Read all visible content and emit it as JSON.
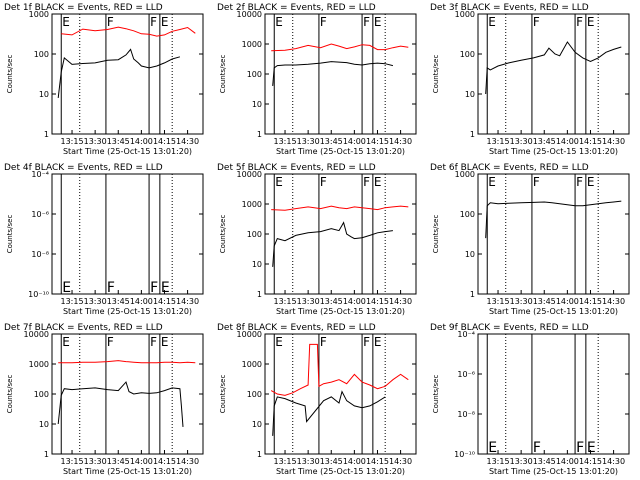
{
  "figure": {
    "x_ticks": [
      "13:15",
      "13:30",
      "13:45",
      "14:00",
      "14:15",
      "14:30"
    ],
    "xlabel": "Start Time (25-Oct-15 13:01:20)",
    "ylabel": "Counts/sec"
  },
  "chart_data": [
    {
      "type": "line",
      "title": "Det 1f BLACK = Events, RED = LLD",
      "ylim": [
        1,
        1000
      ],
      "log_y": true,
      "y_ticks": [
        "1",
        "10",
        "100",
        "1000"
      ],
      "markers": [
        {
          "label": "E",
          "x": "13:08"
        },
        {
          "label": "F",
          "x": "13:37"
        },
        {
          "label": "F",
          "x": "14:05"
        },
        {
          "label": "E",
          "x": "14:12"
        }
      ],
      "dotted_lines": [
        "13:20",
        "14:20"
      ],
      "series": [
        {
          "color": "#ff0000",
          "x": [
            "13:08",
            "13:15",
            "13:22",
            "13:30",
            "13:38",
            "13:45",
            "13:50",
            "13:55",
            "14:00",
            "14:05",
            "14:10",
            "14:15",
            "14:20",
            "14:25",
            "14:30",
            "14:35"
          ],
          "values": [
            320,
            300,
            420,
            380,
            410,
            470,
            430,
            380,
            320,
            310,
            280,
            300,
            370,
            410,
            460,
            330
          ]
        },
        {
          "color": "#000000",
          "x": [
            "13:06",
            "13:08",
            "13:10",
            "13:15",
            "13:22",
            "13:30",
            "13:38",
            "13:45",
            "13:50",
            "13:53",
            "13:55",
            "13:58",
            "14:00",
            "14:05",
            "14:10",
            "14:15",
            "14:20",
            "14:25"
          ],
          "values": [
            8,
            35,
            80,
            55,
            58,
            60,
            70,
            72,
            95,
            130,
            75,
            60,
            50,
            45,
            50,
            60,
            75,
            85
          ]
        }
      ]
    },
    {
      "type": "line",
      "title": "Det 2f BLACK = Events, RED = LLD",
      "ylim": [
        1,
        10000
      ],
      "log_y": true,
      "y_ticks": [
        "1",
        "10",
        "100",
        "1000",
        "10000"
      ],
      "markers": [
        {
          "label": "E",
          "x": "13:08"
        },
        {
          "label": "F",
          "x": "13:37"
        },
        {
          "label": "F",
          "x": "14:05"
        },
        {
          "label": "E",
          "x": "14:12"
        }
      ],
      "dotted_lines": [
        "13:20",
        "14:20"
      ],
      "series": [
        {
          "color": "#ff0000",
          "x": [
            "13:06",
            "13:15",
            "13:22",
            "13:30",
            "13:38",
            "13:45",
            "13:50",
            "13:55",
            "14:00",
            "14:05",
            "14:10",
            "14:15",
            "14:20",
            "14:25",
            "14:30",
            "14:35"
          ],
          "values": [
            600,
            620,
            700,
            900,
            750,
            1000,
            850,
            700,
            800,
            950,
            900,
            650,
            650,
            750,
            850,
            780
          ]
        },
        {
          "color": "#000000",
          "x": [
            "13:07",
            "13:08",
            "13:10",
            "13:15",
            "13:22",
            "13:30",
            "13:38",
            "13:45",
            "13:50",
            "13:55",
            "14:00",
            "14:05",
            "14:10",
            "14:15",
            "14:20",
            "14:25"
          ],
          "values": [
            40,
            160,
            190,
            200,
            200,
            210,
            230,
            260,
            250,
            240,
            210,
            200,
            220,
            230,
            220,
            190
          ]
        }
      ]
    },
    {
      "type": "line",
      "title": "Det 3f BLACK = Events, RED = LLD",
      "ylim": [
        1,
        1000
      ],
      "log_y": true,
      "y_ticks": [
        "1",
        "10",
        "100",
        "1000"
      ],
      "markers": [
        {
          "label": "E",
          "x": "13:08"
        },
        {
          "label": "F",
          "x": "13:37"
        },
        {
          "label": "F",
          "x": "14:05"
        },
        {
          "label": "E",
          "x": "14:12"
        }
      ],
      "dotted_lines": [
        "13:20",
        "14:20"
      ],
      "series": [
        {
          "color": "#000000",
          "x": [
            "13:07",
            "13:08",
            "13:10",
            "13:15",
            "13:22",
            "13:30",
            "13:38",
            "13:45",
            "13:48",
            "13:52",
            "13:55",
            "14:00",
            "14:05",
            "14:10",
            "14:15",
            "14:20",
            "14:25",
            "14:30",
            "14:35"
          ],
          "values": [
            10,
            45,
            40,
            50,
            60,
            70,
            80,
            95,
            140,
            100,
            90,
            200,
            110,
            80,
            65,
            80,
            110,
            130,
            150
          ]
        }
      ]
    },
    {
      "type": "line",
      "title": "Det 4f BLACK = Events, RED = LLD",
      "ylim": [
        1e-10,
        0.0001
      ],
      "log_y": true,
      "y_ticks": [
        "10⁻¹⁰",
        "10⁻⁸",
        "10⁻⁶",
        "10⁻⁴"
      ],
      "markers": [
        {
          "label": "E",
          "x": "13:08"
        },
        {
          "label": "F",
          "x": "13:37"
        },
        {
          "label": "F",
          "x": "14:05"
        },
        {
          "label": "E",
          "x": "14:12"
        }
      ],
      "dotted_lines": [
        "13:20",
        "14:20"
      ],
      "series": []
    },
    {
      "type": "line",
      "title": "Det 5f BLACK = Events, RED = LLD",
      "ylim": [
        1,
        10000
      ],
      "log_y": true,
      "y_ticks": [
        "1",
        "10",
        "100",
        "1000",
        "10000"
      ],
      "markers": [
        {
          "label": "E",
          "x": "13:08"
        },
        {
          "label": "F",
          "x": "13:37"
        },
        {
          "label": "F",
          "x": "14:05"
        },
        {
          "label": "E",
          "x": "14:12"
        }
      ],
      "dotted_lines": [
        "13:20",
        "14:20"
      ],
      "series": [
        {
          "color": "#ff0000",
          "x": [
            "13:06",
            "13:15",
            "13:22",
            "13:30",
            "13:38",
            "13:45",
            "13:50",
            "13:55",
            "14:00",
            "14:05",
            "14:10",
            "14:15",
            "14:20",
            "14:25",
            "14:30",
            "14:35"
          ],
          "values": [
            650,
            620,
            700,
            800,
            700,
            850,
            750,
            700,
            800,
            750,
            700,
            650,
            750,
            800,
            850,
            800
          ]
        },
        {
          "color": "#000000",
          "x": [
            "13:07",
            "13:08",
            "13:10",
            "13:15",
            "13:22",
            "13:30",
            "13:38",
            "13:45",
            "13:50",
            "13:53",
            "13:55",
            "13:58",
            "14:00",
            "14:05",
            "14:10",
            "14:15",
            "14:20",
            "14:25"
          ],
          "values": [
            8,
            40,
            70,
            60,
            90,
            110,
            120,
            150,
            130,
            240,
            100,
            80,
            70,
            75,
            90,
            110,
            120,
            130
          ]
        }
      ]
    },
    {
      "type": "line",
      "title": "Det 6f BLACK = Events, RED = LLD",
      "ylim": [
        1,
        1000
      ],
      "log_y": true,
      "y_ticks": [
        "1",
        "10",
        "100",
        "1000"
      ],
      "markers": [
        {
          "label": "E",
          "x": "13:08"
        },
        {
          "label": "F",
          "x": "13:37"
        },
        {
          "label": "F",
          "x": "14:05"
        },
        {
          "label": "E",
          "x": "14:12"
        }
      ],
      "dotted_lines": [
        "13:20",
        "14:20"
      ],
      "series": [
        {
          "color": "#000000",
          "x": [
            "13:07",
            "13:08",
            "13:10",
            "13:15",
            "13:22",
            "13:30",
            "13:38",
            "13:45",
            "13:50",
            "13:55",
            "14:00",
            "14:05",
            "14:10",
            "14:15",
            "14:20",
            "14:25",
            "14:30",
            "14:35"
          ],
          "values": [
            25,
            160,
            190,
            180,
            185,
            190,
            195,
            200,
            190,
            180,
            170,
            160,
            160,
            170,
            180,
            190,
            200,
            210
          ]
        }
      ]
    },
    {
      "type": "line",
      "title": "Det 7f BLACK = Events, RED = LLD",
      "ylim": [
        1,
        10000
      ],
      "log_y": true,
      "y_ticks": [
        "1",
        "10",
        "100",
        "1000",
        "10000"
      ],
      "markers": [
        {
          "label": "E",
          "x": "13:08"
        },
        {
          "label": "F",
          "x": "13:37"
        },
        {
          "label": "F",
          "x": "14:05"
        },
        {
          "label": "E",
          "x": "14:12"
        }
      ],
      "dotted_lines": [
        "13:20",
        "14:20"
      ],
      "series": [
        {
          "color": "#ff0000",
          "x": [
            "13:06",
            "13:15",
            "13:22",
            "13:30",
            "13:38",
            "13:45",
            "13:50",
            "13:55",
            "14:00",
            "14:05",
            "14:10",
            "14:15",
            "14:20",
            "14:25",
            "14:30",
            "14:35"
          ],
          "values": [
            1100,
            1100,
            1150,
            1150,
            1200,
            1300,
            1200,
            1150,
            1100,
            1100,
            1100,
            1150,
            1150,
            1100,
            1150,
            1100
          ]
        },
        {
          "color": "#000000",
          "x": [
            "13:06",
            "13:08",
            "13:10",
            "13:15",
            "13:22",
            "13:30",
            "13:38",
            "13:45",
            "13:50",
            "13:52",
            "13:55",
            "14:00",
            "14:05",
            "14:10",
            "14:15",
            "14:20",
            "14:25",
            "14:26",
            "14:27"
          ],
          "values": [
            10,
            90,
            150,
            140,
            150,
            160,
            140,
            130,
            250,
            120,
            100,
            110,
            105,
            110,
            130,
            160,
            150,
            40,
            8
          ]
        }
      ]
    },
    {
      "type": "line",
      "title": "Det 8f BLACK = Events, RED = LLD",
      "ylim": [
        1,
        10000
      ],
      "log_y": true,
      "y_ticks": [
        "1",
        "10",
        "100",
        "1000",
        "10000"
      ],
      "markers": [
        {
          "label": "E",
          "x": "13:08"
        },
        {
          "label": "F",
          "x": "13:37"
        },
        {
          "label": "F",
          "x": "14:05"
        },
        {
          "label": "E",
          "x": "14:12"
        }
      ],
      "dotted_lines": [
        "13:20",
        "14:20"
      ],
      "series": [
        {
          "color": "#ff0000",
          "x": [
            "13:06",
            "13:10",
            "13:15",
            "13:20",
            "13:25",
            "13:30",
            "13:31",
            "13:36",
            "13:37",
            "13:40",
            "13:45",
            "13:50",
            "13:55",
            "14:00",
            "14:05",
            "14:10",
            "14:15",
            "14:20",
            "14:25",
            "14:30",
            "14:35"
          ],
          "values": [
            130,
            100,
            90,
            110,
            150,
            200,
            4500,
            4500,
            180,
            220,
            250,
            300,
            220,
            450,
            250,
            200,
            150,
            180,
            300,
            450,
            300
          ]
        },
        {
          "color": "#000000",
          "x": [
            "13:07",
            "13:08",
            "13:10",
            "13:15",
            "13:22",
            "13:28",
            "13:29",
            "13:40",
            "13:45",
            "13:50",
            "13:52",
            "13:55",
            "14:00",
            "14:05",
            "14:10",
            "14:15",
            "14:20"
          ],
          "values": [
            4,
            40,
            80,
            70,
            50,
            40,
            12,
            60,
            80,
            50,
            120,
            60,
            40,
            35,
            40,
            55,
            80
          ]
        }
      ]
    },
    {
      "type": "line",
      "title": "Det 9f BLACK = Events, RED = LLD",
      "ylim": [
        1e-10,
        0.0001
      ],
      "log_y": true,
      "y_ticks": [
        "10⁻¹⁰",
        "10⁻⁸",
        "10⁻⁶",
        "10⁻⁴"
      ],
      "markers": [
        {
          "label": "E",
          "x": "13:08"
        },
        {
          "label": "F",
          "x": "13:37"
        },
        {
          "label": "F",
          "x": "14:05"
        },
        {
          "label": "E",
          "x": "14:12"
        }
      ],
      "dotted_lines": [
        "13:20",
        "14:20"
      ],
      "series": []
    }
  ]
}
